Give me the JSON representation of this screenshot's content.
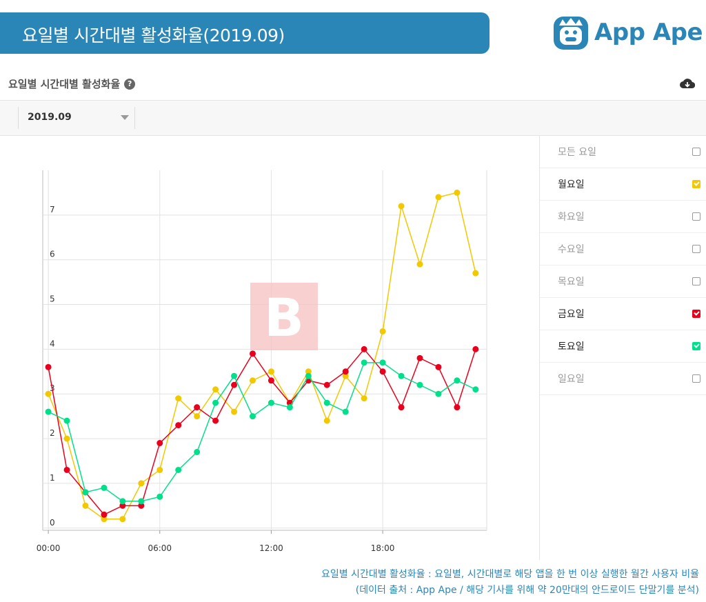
{
  "header": {
    "banner_title": "요일별 시간대별 활성화율(2019.09)",
    "logo_text": "App Ape",
    "brand_color": "#2b86b8"
  },
  "section": {
    "title": "요일별 시간대별 활성화율",
    "help_icon": "question-circle-icon",
    "download_icon": "cloud-download-icon"
  },
  "toolbar": {
    "selected_month": "2019.09"
  },
  "legend": [
    {
      "label": "모든 요일",
      "checked": false,
      "color": "#999999"
    },
    {
      "label": "월요일",
      "checked": true,
      "color": "#f2c800"
    },
    {
      "label": "화요일",
      "checked": false,
      "color": "#999999"
    },
    {
      "label": "수요일",
      "checked": false,
      "color": "#999999"
    },
    {
      "label": "목요일",
      "checked": false,
      "color": "#999999"
    },
    {
      "label": "금요일",
      "checked": true,
      "color": "#e8001c"
    },
    {
      "label": "토요일",
      "checked": true,
      "color": "#00e08a"
    },
    {
      "label": "일요일",
      "checked": false,
      "color": "#999999"
    }
  ],
  "chart_data": {
    "type": "line",
    "title": "",
    "xlabel": "",
    "ylabel": "",
    "x": [
      0,
      1,
      2,
      3,
      4,
      5,
      6,
      7,
      8,
      9,
      10,
      11,
      12,
      13,
      14,
      15,
      16,
      17,
      18,
      19,
      20,
      21,
      22,
      23
    ],
    "xticks": [
      {
        "value": 0,
        "label": "00:00"
      },
      {
        "value": 6,
        "label": "06:00"
      },
      {
        "value": 12,
        "label": "12:00"
      },
      {
        "value": 18,
        "label": "18:00"
      }
    ],
    "yticks": [
      0,
      1,
      2,
      3,
      4,
      5,
      6,
      7
    ],
    "xlim": [
      -0.3,
      23.6
    ],
    "ylim": [
      -0.05,
      8.0
    ],
    "grid": true,
    "series": [
      {
        "name": "월요일",
        "color": "#f2c800",
        "values": [
          3.0,
          2.0,
          0.5,
          0.2,
          0.2,
          1.0,
          1.3,
          2.9,
          2.5,
          3.1,
          2.6,
          3.3,
          3.5,
          2.8,
          3.5,
          2.4,
          3.4,
          2.9,
          4.4,
          7.2,
          5.9,
          7.4,
          7.5,
          5.7
        ]
      },
      {
        "name": "금요일",
        "color": "#e8001c",
        "values": [
          3.6,
          1.3,
          0.8,
          0.3,
          0.5,
          0.5,
          1.9,
          2.3,
          2.7,
          2.4,
          3.2,
          3.9,
          3.3,
          2.8,
          3.3,
          3.2,
          3.5,
          4.0,
          3.5,
          2.7,
          3.8,
          3.6,
          2.7,
          4.0
        ]
      },
      {
        "name": "토요일",
        "color": "#00e08a",
        "values": [
          2.6,
          2.4,
          0.8,
          0.9,
          0.6,
          0.6,
          0.7,
          1.3,
          1.7,
          2.8,
          3.4,
          2.5,
          2.8,
          2.7,
          3.4,
          2.8,
          2.6,
          3.7,
          3.7,
          3.4,
          3.2,
          3.0,
          3.3,
          3.1
        ]
      }
    ]
  },
  "footer": {
    "line1": "요일별 시간대별 활성화율 : 요일별, 시간대별로 해당 앱을 한 번 이상 실행한 월간 사용자 비율",
    "line2": "(데이터 출처 : App Ape / 해당 기사를 위해 약 20만대의 안드로이드 단말기를 분석)"
  }
}
